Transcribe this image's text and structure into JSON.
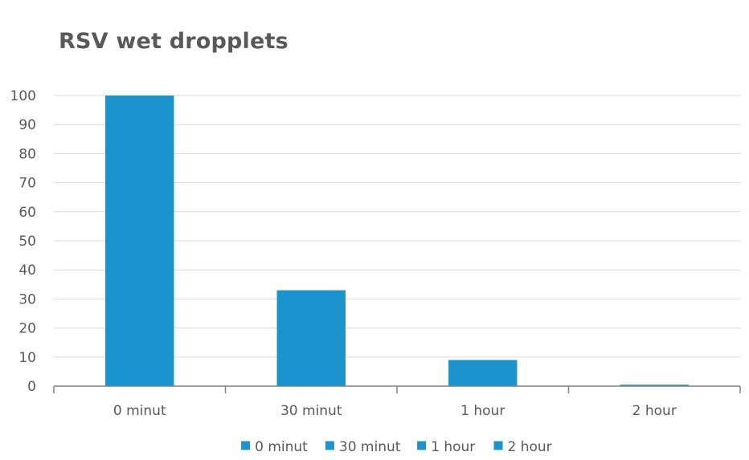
{
  "chart_data": {
    "type": "bar",
    "title": "RSV wet dropplets",
    "xlabel": "",
    "ylabel": "",
    "categories": [
      "0 minut",
      "30 minut",
      "1 hour",
      "2 hour"
    ],
    "series": [
      {
        "name": "0 minut",
        "values": [
          100,
          null,
          null,
          null
        ]
      },
      {
        "name": "30 minut",
        "values": [
          null,
          33,
          null,
          null
        ]
      },
      {
        "name": "1 hour",
        "values": [
          null,
          null,
          9,
          null
        ]
      },
      {
        "name": "2 hour",
        "values": [
          null,
          null,
          null,
          0.5
        ]
      }
    ],
    "values": [
      100,
      33,
      9,
      0.5
    ],
    "ylim": [
      0,
      100
    ],
    "yticks": [
      0,
      10,
      20,
      30,
      40,
      50,
      60,
      70,
      80,
      90,
      100
    ],
    "grid": true,
    "legend_position": "bottom",
    "legend": [
      "0 minut",
      "30 minut",
      "1 hour",
      "2 hour"
    ],
    "colors": {
      "bar": "#1b93cc",
      "text": "#595959",
      "grid": "#d9d9d9",
      "axis": "#808080"
    }
  }
}
